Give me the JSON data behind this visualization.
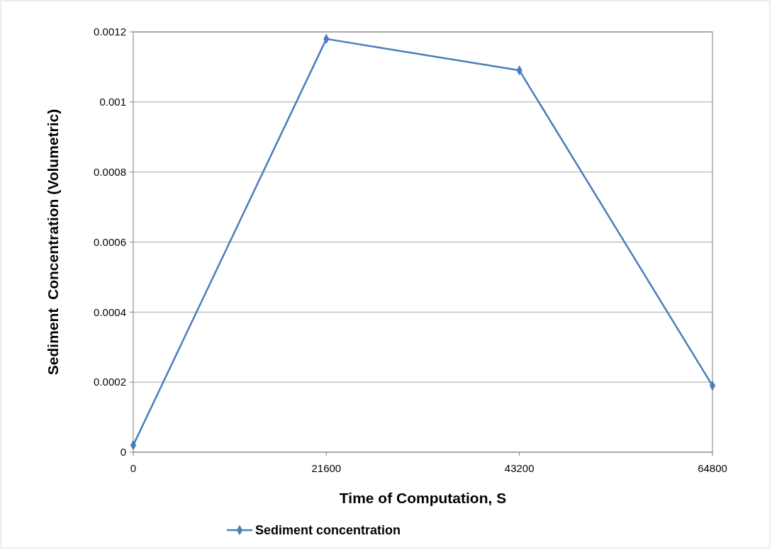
{
  "chart_data": {
    "type": "line",
    "xlabel": "Time of Computation, S",
    "ylabel": "Sediment  Concentration (Volumetric)",
    "x": [
      0,
      21600,
      43200,
      64800
    ],
    "series": [
      {
        "name": "Sediment concentration",
        "color": "#4a7ebb",
        "values": [
          2e-05,
          0.00118,
          0.00109,
          0.00019
        ]
      }
    ],
    "xlim": [
      0,
      64800
    ],
    "xticks": [
      0,
      21600,
      43200,
      64800
    ],
    "ylim": [
      0,
      0.0012
    ],
    "yticks": [
      0,
      0.0002,
      0.0004,
      0.0006,
      0.0008,
      0.001,
      0.0012
    ],
    "grid": "y",
    "legend": "bottom",
    "marker": "diamond",
    "line_style": "solid"
  }
}
